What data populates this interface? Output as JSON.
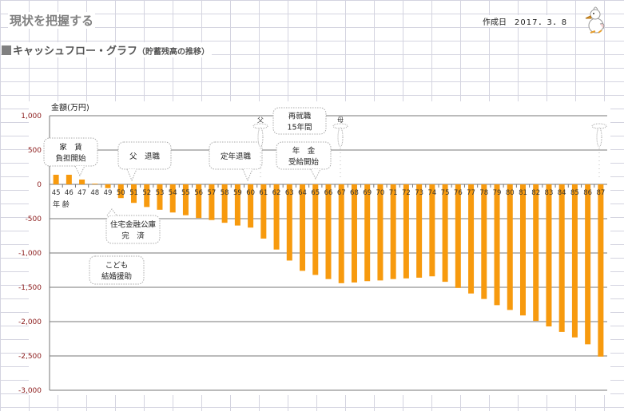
{
  "header": {
    "title": "現状を把握する",
    "date_label": "作成日",
    "date_value": "2017．3．8",
    "mascot_icon": "duck-mascot"
  },
  "section": {
    "title": "キャッシュフロー・グラフ",
    "subtitle": "（貯蓄残高の推移）"
  },
  "chart_data": {
    "type": "bar",
    "ylabel": "金額(万円)",
    "xlabel": "年 齢",
    "ylim": [
      -3000,
      1000
    ],
    "yticks": [
      1000,
      500,
      0,
      -500,
      -1000,
      -1500,
      -2000,
      -2500,
      -3000
    ],
    "ytick_labels": [
      "1,000",
      "500",
      "0",
      "-500",
      "-1,000",
      "-1,500",
      "-2,000",
      "-2,500",
      "-3,000"
    ],
    "grid": true,
    "bar_color": "#F79A0E",
    "tick_color": "#8B1A1A",
    "categories": [
      "45",
      "46",
      "47",
      "48",
      "49",
      "50",
      "51",
      "52",
      "53",
      "54",
      "55",
      "56",
      "57",
      "58",
      "59",
      "60",
      "61",
      "62",
      "63",
      "64",
      "65",
      "66",
      "67",
      "68",
      "69",
      "70",
      "71",
      "72",
      "73",
      "74",
      "75",
      "76",
      "77",
      "78",
      "79",
      "80",
      "81",
      "82",
      "83",
      "84",
      "85",
      "86",
      "87"
    ],
    "values": [
      140,
      140,
      70,
      10,
      -55,
      -200,
      -270,
      -330,
      -370,
      -410,
      -450,
      -490,
      -520,
      -560,
      -600,
      -630,
      -790,
      -950,
      -1110,
      -1260,
      -1320,
      -1380,
      -1440,
      -1430,
      -1410,
      -1400,
      -1380,
      -1370,
      -1360,
      -1340,
      -1420,
      -1510,
      -1590,
      -1670,
      -1760,
      -1830,
      -1910,
      -1990,
      -2070,
      -2150,
      -2230,
      -2330,
      -2510
    ],
    "annotations": [
      {
        "lines": [
          "家　賃",
          "負担開始"
        ],
        "age": "47"
      },
      {
        "lines": [
          "父　退職"
        ],
        "age": "51"
      },
      {
        "lines": [
          "定年退職"
        ],
        "age": "60"
      },
      {
        "lines": [
          "再就職",
          "15年間"
        ],
        "age": "65"
      },
      {
        "lines": [
          "年　金",
          "受給開始"
        ],
        "age": "65"
      },
      {
        "lines": [
          "住宅金融公庫",
          "完　済"
        ],
        "age": "52"
      },
      {
        "lines": [
          "こども",
          "結婚援助"
        ],
        "age": "50"
      },
      {
        "lines": [
          "父"
        ],
        "age": "61"
      },
      {
        "lines": [
          "母"
        ],
        "age": "67"
      },
      {
        "lines": [
          ""
        ],
        "age": "87"
      }
    ]
  }
}
